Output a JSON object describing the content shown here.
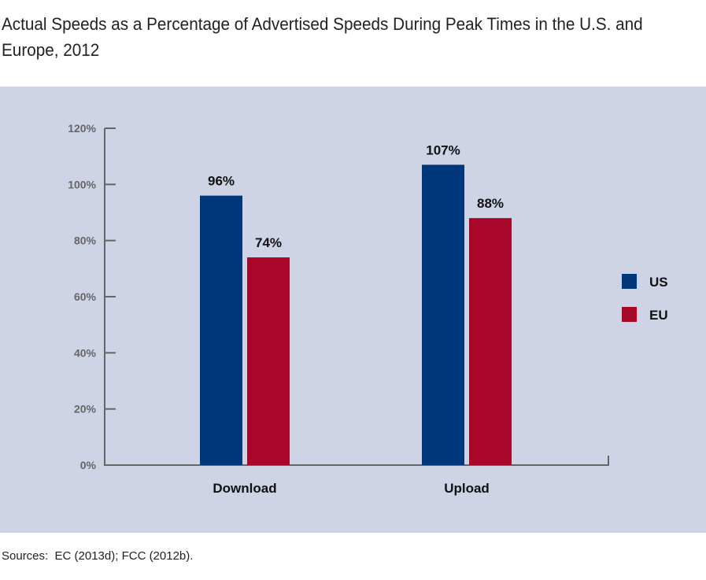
{
  "chart_data": {
    "type": "bar",
    "title": "Actual Speeds as a Percentage of Advertised Speeds During Peak Times in the U.S. and Europe, 2012",
    "categories": [
      "Download",
      "Upload"
    ],
    "series": [
      {
        "name": "US",
        "values": [
          96,
          107
        ],
        "labels": [
          "96%",
          "107%"
        ],
        "color": "#00377a"
      },
      {
        "name": "EU",
        "values": [
          74,
          88
        ],
        "labels": [
          "74%",
          "88%"
        ],
        "color": "#a8072a"
      }
    ],
    "ylim": [
      0,
      120
    ],
    "yticks": [
      0,
      20,
      40,
      60,
      80,
      100,
      120
    ],
    "ytick_labels": [
      "0%",
      "20%",
      "40%",
      "60%",
      "80%",
      "100%",
      "120%"
    ],
    "xlabel": "",
    "ylabel": "",
    "grid": false,
    "legend": "right"
  },
  "source": "Sources:  EC (2013d); FCC (2012b).",
  "colors": {
    "background": "#cfd3e6",
    "axis": "#666666"
  }
}
